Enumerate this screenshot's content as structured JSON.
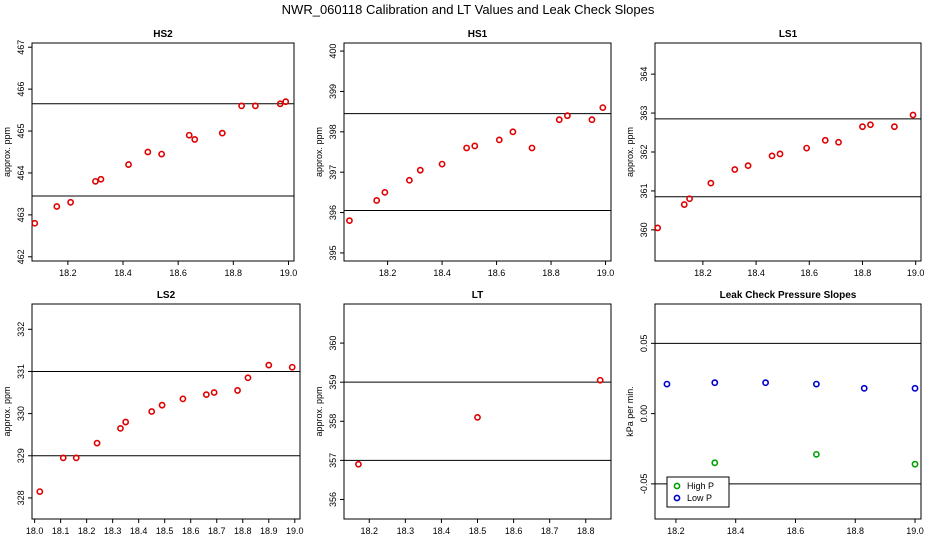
{
  "figure": {
    "title": "NWR_060118  Calibration and LT Values and Leak Check Slopes"
  },
  "colors": {
    "points": "#e00000",
    "high_p": "#00a000",
    "low_p": "#0000d0",
    "frame": "#000000"
  },
  "chart_data": [
    {
      "type": "scatter",
      "title": "HS2",
      "ylabel": "approx. ppm",
      "xlim": [
        18.07,
        19.02
      ],
      "ylim": [
        461.9,
        467.1
      ],
      "xticks": [
        "18.2",
        "18.4",
        "18.6",
        "18.8",
        "19.0"
      ],
      "yticks": [
        "462",
        "463",
        "464",
        "465",
        "466",
        "467"
      ],
      "hlines": [
        465.65,
        463.45
      ],
      "x": [
        18.08,
        18.16,
        18.21,
        18.3,
        18.32,
        18.42,
        18.49,
        18.54,
        18.64,
        18.66,
        18.76,
        18.83,
        18.88,
        18.97,
        18.99
      ],
      "y": [
        462.8,
        463.2,
        463.3,
        463.8,
        463.85,
        464.2,
        464.5,
        464.45,
        464.9,
        464.8,
        464.95,
        465.6,
        465.6,
        465.65,
        465.7
      ]
    },
    {
      "type": "scatter",
      "title": "HS1",
      "ylabel": "approx. ppm",
      "xlim": [
        18.04,
        19.02
      ],
      "ylim": [
        394.8,
        400.2
      ],
      "xticks": [
        "18.2",
        "18.4",
        "18.6",
        "18.8",
        "19.0"
      ],
      "yticks": [
        "395",
        "396",
        "397",
        "398",
        "399",
        "400"
      ],
      "hlines": [
        398.45,
        396.05
      ],
      "x": [
        18.06,
        18.16,
        18.19,
        18.28,
        18.32,
        18.4,
        18.49,
        18.52,
        18.61,
        18.66,
        18.73,
        18.83,
        18.86,
        18.95,
        18.99
      ],
      "y": [
        395.8,
        396.3,
        396.5,
        396.8,
        397.05,
        397.2,
        397.6,
        397.65,
        397.8,
        398.0,
        397.6,
        398.3,
        398.4,
        398.3,
        398.6
      ]
    },
    {
      "type": "scatter",
      "title": "LS1",
      "ylabel": "approx. ppm",
      "xlim": [
        18.02,
        19.02
      ],
      "ylim": [
        359.2,
        364.8
      ],
      "xticks": [
        "18.2",
        "18.4",
        "18.6",
        "18.8",
        "19.0"
      ],
      "yticks": [
        "360",
        "361",
        "362",
        "363",
        "364"
      ],
      "hlines": [
        362.85,
        360.85
      ],
      "x": [
        18.03,
        18.13,
        18.15,
        18.23,
        18.32,
        18.37,
        18.46,
        18.49,
        18.59,
        18.66,
        18.71,
        18.8,
        18.83,
        18.92,
        18.99
      ],
      "y": [
        360.05,
        360.65,
        360.8,
        361.2,
        361.55,
        361.65,
        361.9,
        361.95,
        362.1,
        362.3,
        362.25,
        362.65,
        362.7,
        362.65,
        362.95
      ]
    },
    {
      "type": "scatter",
      "title": "LS2",
      "ylabel": "approx. ppm",
      "xlim": [
        17.99,
        19.02
      ],
      "ylim": [
        327.5,
        332.6
      ],
      "xticks": [
        "18.0",
        "18.1",
        "18.2",
        "18.3",
        "18.4",
        "18.5",
        "18.6",
        "18.7",
        "18.8",
        "18.9",
        "19.0"
      ],
      "yticks": [
        "328",
        "329",
        "330",
        "331",
        "332"
      ],
      "hlines": [
        331.0,
        329.0
      ],
      "x": [
        18.02,
        18.11,
        18.16,
        18.24,
        18.33,
        18.35,
        18.45,
        18.49,
        18.57,
        18.66,
        18.69,
        18.78,
        18.82,
        18.9,
        18.99
      ],
      "y": [
        328.15,
        328.95,
        328.95,
        329.3,
        329.65,
        329.8,
        330.05,
        330.2,
        330.35,
        330.45,
        330.5,
        330.55,
        330.85,
        331.15,
        331.1
      ]
    },
    {
      "type": "scatter",
      "title": "LT",
      "ylabel": "approx. ppm",
      "xlim": [
        18.13,
        18.87
      ],
      "ylim": [
        355.5,
        361.0
      ],
      "xticks": [
        "18.2",
        "18.3",
        "18.4",
        "18.5",
        "18.6",
        "18.7",
        "18.8"
      ],
      "yticks": [
        "356",
        "357",
        "358",
        "359",
        "360"
      ],
      "hlines": [
        359.0,
        357.0
      ],
      "x": [
        18.17,
        18.5,
        18.84
      ],
      "y": [
        356.9,
        358.1,
        359.05
      ]
    },
    {
      "type": "scatter",
      "title": "Leak Check Pressure Slopes",
      "ylabel": "kPa per min.",
      "xlim": [
        18.13,
        19.02
      ],
      "ylim": [
        -0.075,
        0.078
      ],
      "xticks": [
        "18.2",
        "18.4",
        "18.6",
        "18.8",
        "19.0"
      ],
      "yticks": [
        "-0.05",
        "0.00",
        "0.05"
      ],
      "hlines": [
        0.05,
        -0.05
      ],
      "legend": {
        "position": "bottom-left",
        "entries": [
          "High P",
          "Low P"
        ]
      },
      "series": [
        {
          "name": "High P",
          "x": [
            18.33,
            18.67,
            19.0
          ],
          "y": [
            -0.035,
            -0.029,
            -0.036
          ]
        },
        {
          "name": "Low P",
          "x": [
            18.17,
            18.33,
            18.5,
            18.67,
            18.83,
            19.0
          ],
          "y": [
            0.021,
            0.022,
            0.022,
            0.021,
            0.018,
            0.018
          ]
        }
      ]
    }
  ]
}
